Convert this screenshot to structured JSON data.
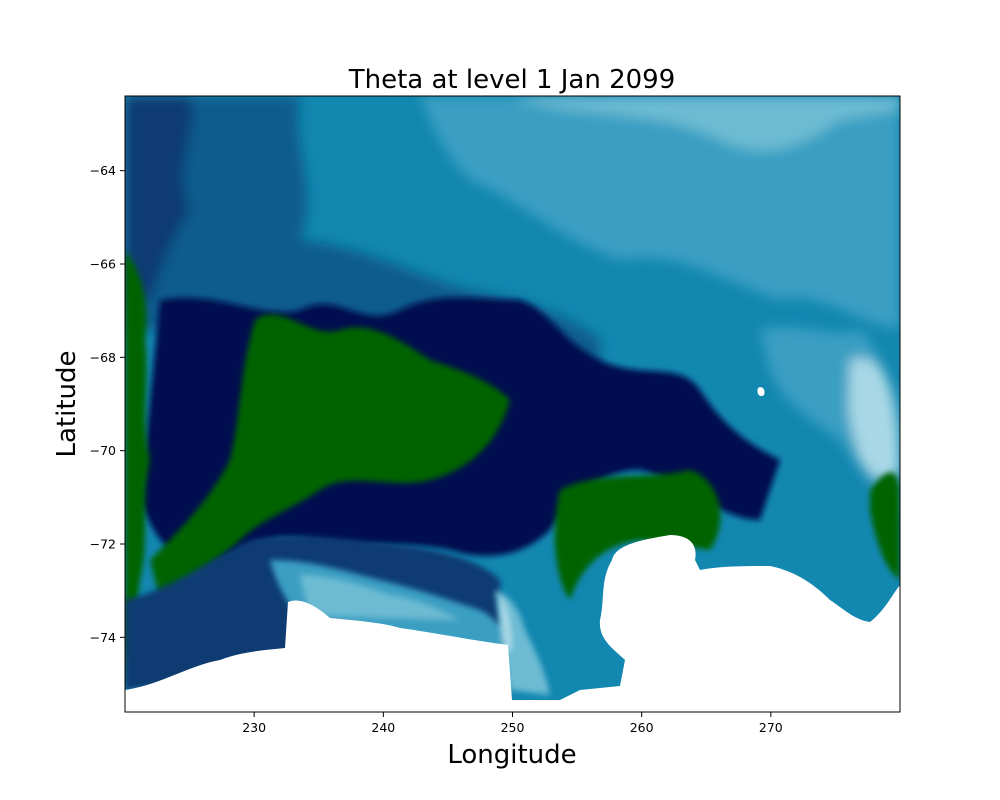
{
  "chart_data": {
    "type": "heatmap",
    "title": "Theta at level 1 Jan 2099",
    "xlabel": "Longitude",
    "ylabel": "Latitude",
    "xlim": [
      220,
      280
    ],
    "ylim": [
      -75.6,
      -62.4
    ],
    "xticks": [
      230,
      240,
      250,
      260,
      270
    ],
    "yticks": [
      -64,
      -66,
      -68,
      -70,
      -72,
      -74
    ],
    "xtick_labels": [
      "230",
      "240",
      "250",
      "260",
      "270"
    ],
    "ytick_labels": [
      "−64",
      "−66",
      "−68",
      "−70",
      "−72",
      "−74"
    ],
    "colorscale": [
      "#006400",
      "#04404a",
      "#000e4f",
      "#073a72",
      "#0d5b8c",
      "#1287b0",
      "#3a9fc2",
      "#6cbbd3",
      "#a8d8e6"
    ],
    "grid": false,
    "legend": "none",
    "land_color": "#ffffff",
    "regions": [
      {
        "zone": "northern open ocean",
        "level": "mid-light blue"
      },
      {
        "zone": "western coastal band",
        "level": "green (coldest)"
      },
      {
        "zone": "central shelf",
        "level": "green and dark navy"
      },
      {
        "zone": "eastern open ocean",
        "level": "light blue (warmest)"
      },
      {
        "zone": "southern coast near 240–252",
        "level": "light blue"
      }
    ]
  }
}
